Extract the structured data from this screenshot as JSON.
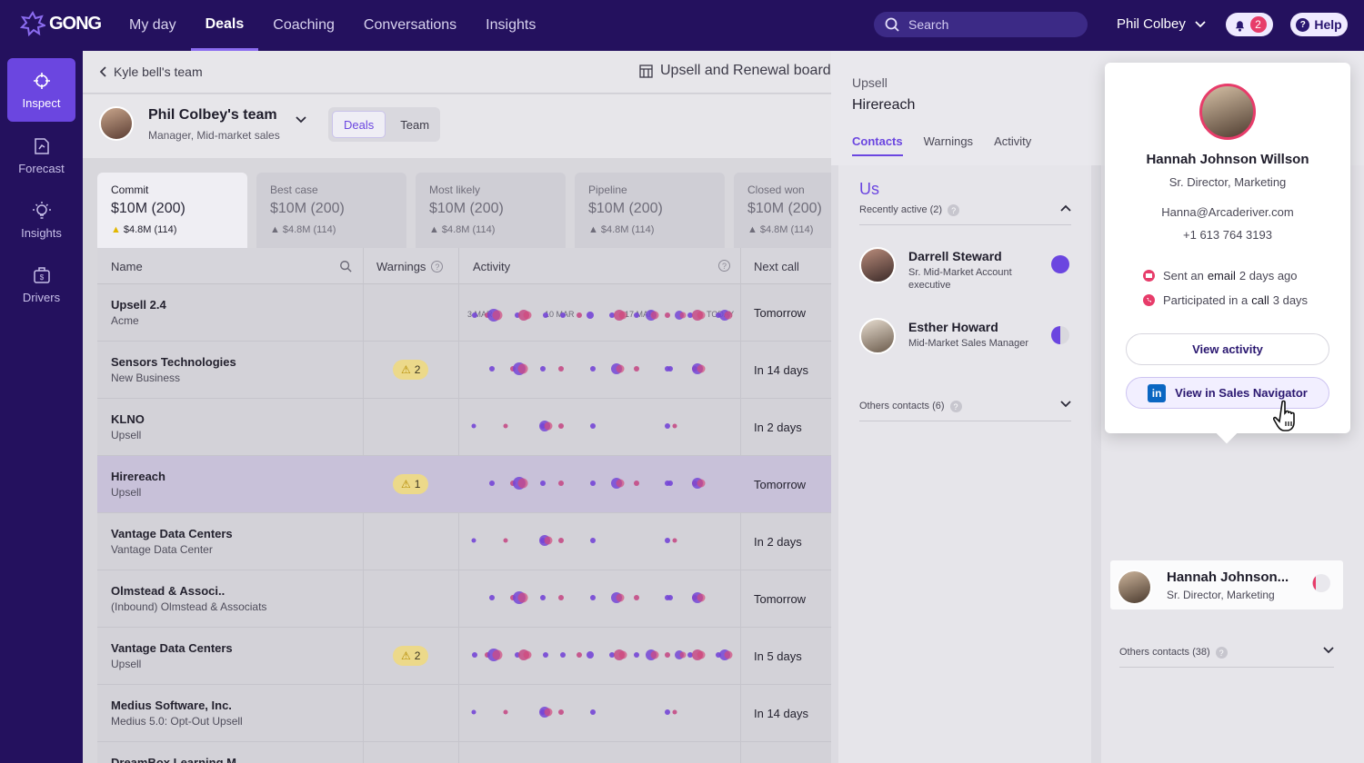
{
  "header": {
    "logo_text": "GONG",
    "nav": [
      {
        "label": "My day",
        "active": false
      },
      {
        "label": "Deals",
        "active": true
      },
      {
        "label": "Coaching",
        "active": false
      },
      {
        "label": "Conversations",
        "active": false
      },
      {
        "label": "Insights",
        "active": false
      }
    ],
    "search_placeholder": "Search",
    "user_name": "Phil Colbey",
    "notification_count": "2",
    "help_label": "Help",
    "accent_color": "#6b46e0"
  },
  "sidebar": {
    "items": [
      {
        "label": "Inspect",
        "icon": "crosshair-icon",
        "active": true
      },
      {
        "label": "Forecast",
        "icon": "forecast-icon",
        "active": false
      },
      {
        "label": "Insights",
        "icon": "lightbulb-icon",
        "active": false
      },
      {
        "label": "Drivers",
        "icon": "briefcase-icon",
        "active": false
      }
    ]
  },
  "main": {
    "back_label": "Kyle bell's team",
    "board_label": "Upsell and Renewal board",
    "team": {
      "name": "Phil Colbey's team",
      "role": "Manager, Mid-market sales",
      "tabs": [
        {
          "label": "Deals",
          "active": true
        },
        {
          "label": "Team",
          "active": false
        }
      ]
    },
    "cards": [
      {
        "label": "Commit",
        "value": "$10M (200)",
        "sub": "$4.8M (114)",
        "active": true
      },
      {
        "label": "Best case",
        "value": "$10M (200)",
        "sub": "$4.8M (114)",
        "active": false
      },
      {
        "label": "Most likely",
        "value": "$10M (200)",
        "sub": "$4.8M (114)",
        "active": false
      },
      {
        "label": "Pipeline",
        "value": "$10M (200)",
        "sub": "$4.8M (114)",
        "active": false
      },
      {
        "label": "Closed won",
        "value": "$10M (200)",
        "sub": "$4.8M (114)",
        "active": false
      }
    ],
    "table": {
      "headers": {
        "name": "Name",
        "warnings": "Warnings",
        "activity": "Activity",
        "next_call": "Next call"
      },
      "activity_ticks": [
        "3 MAR",
        "10 MAR",
        "17 MAR",
        "TODAY"
      ],
      "rows": [
        {
          "name": "Upsell 2.4",
          "sub": "Acme",
          "warnings": "",
          "next_call": "Tomorrow",
          "pattern": "a"
        },
        {
          "name": "Sensors Technologies",
          "sub": "New Business",
          "warnings": "2",
          "next_call": "In 14 days",
          "pattern": "b"
        },
        {
          "name": "KLNO",
          "sub": "Upsell",
          "warnings": "",
          "next_call": "In 2 days",
          "pattern": "c"
        },
        {
          "name": "Hirereach",
          "sub": "Upsell",
          "warnings": "1",
          "next_call": "Tomorrow",
          "pattern": "b",
          "selected": true
        },
        {
          "name": "Vantage Data Centers",
          "sub": "Vantage Data Center",
          "warnings": "",
          "next_call": "In 2 days",
          "pattern": "c"
        },
        {
          "name": "Olmstead & Associ..",
          "sub": "(Inbound) Olmstead & Associats",
          "warnings": "",
          "next_call": "Tomorrow",
          "pattern": "b"
        },
        {
          "name": "Vantage Data Centers",
          "sub": "Upsell",
          "warnings": "2",
          "next_call": "In 5 days",
          "pattern": "a"
        },
        {
          "name": "Medius Software, Inc.",
          "sub": "Medius 5.0: Opt-Out Upsell",
          "warnings": "",
          "next_call": "In 14 days",
          "pattern": "c"
        },
        {
          "name": "DreamBox Learning M..",
          "sub": "",
          "warnings": "",
          "next_call": "",
          "pattern": "none"
        }
      ]
    }
  },
  "detail": {
    "category": "Upsell",
    "title": "Hirereach",
    "tabs": [
      {
        "label": "Contacts",
        "active": true
      },
      {
        "label": "Warnings",
        "active": false
      },
      {
        "label": "Activity",
        "active": false
      }
    ],
    "us": {
      "title": "Us",
      "recently_active": "Recently active (2)",
      "contacts": [
        {
          "name": "Darrell Steward",
          "role": "Sr. Mid-Market Account executive",
          "status": "full"
        },
        {
          "name": "Esther Howard",
          "role": "Mid-Market Sales Manager",
          "status": "half"
        }
      ],
      "others": "Others contacts (6)"
    },
    "customer": {
      "contact": {
        "name": "Hannah Johnson...",
        "role": "Sr. Director, Marketing"
      },
      "others": "Others contacts (38)"
    }
  },
  "popover": {
    "name": "Hannah Johnson Willson",
    "role": "Sr. Director, Marketing",
    "email": "Hanna@Arcaderiver.com",
    "phone": "+1 613 764 3193",
    "email_activity": {
      "prefix": "Sent an",
      "bold": "email",
      "suffix": "2 days ago"
    },
    "call_activity": {
      "prefix": "Participated in a",
      "bold": "call",
      "suffix": "3 days"
    },
    "view_activity": "View activity",
    "sales_nav": "View in Sales Navigator"
  }
}
